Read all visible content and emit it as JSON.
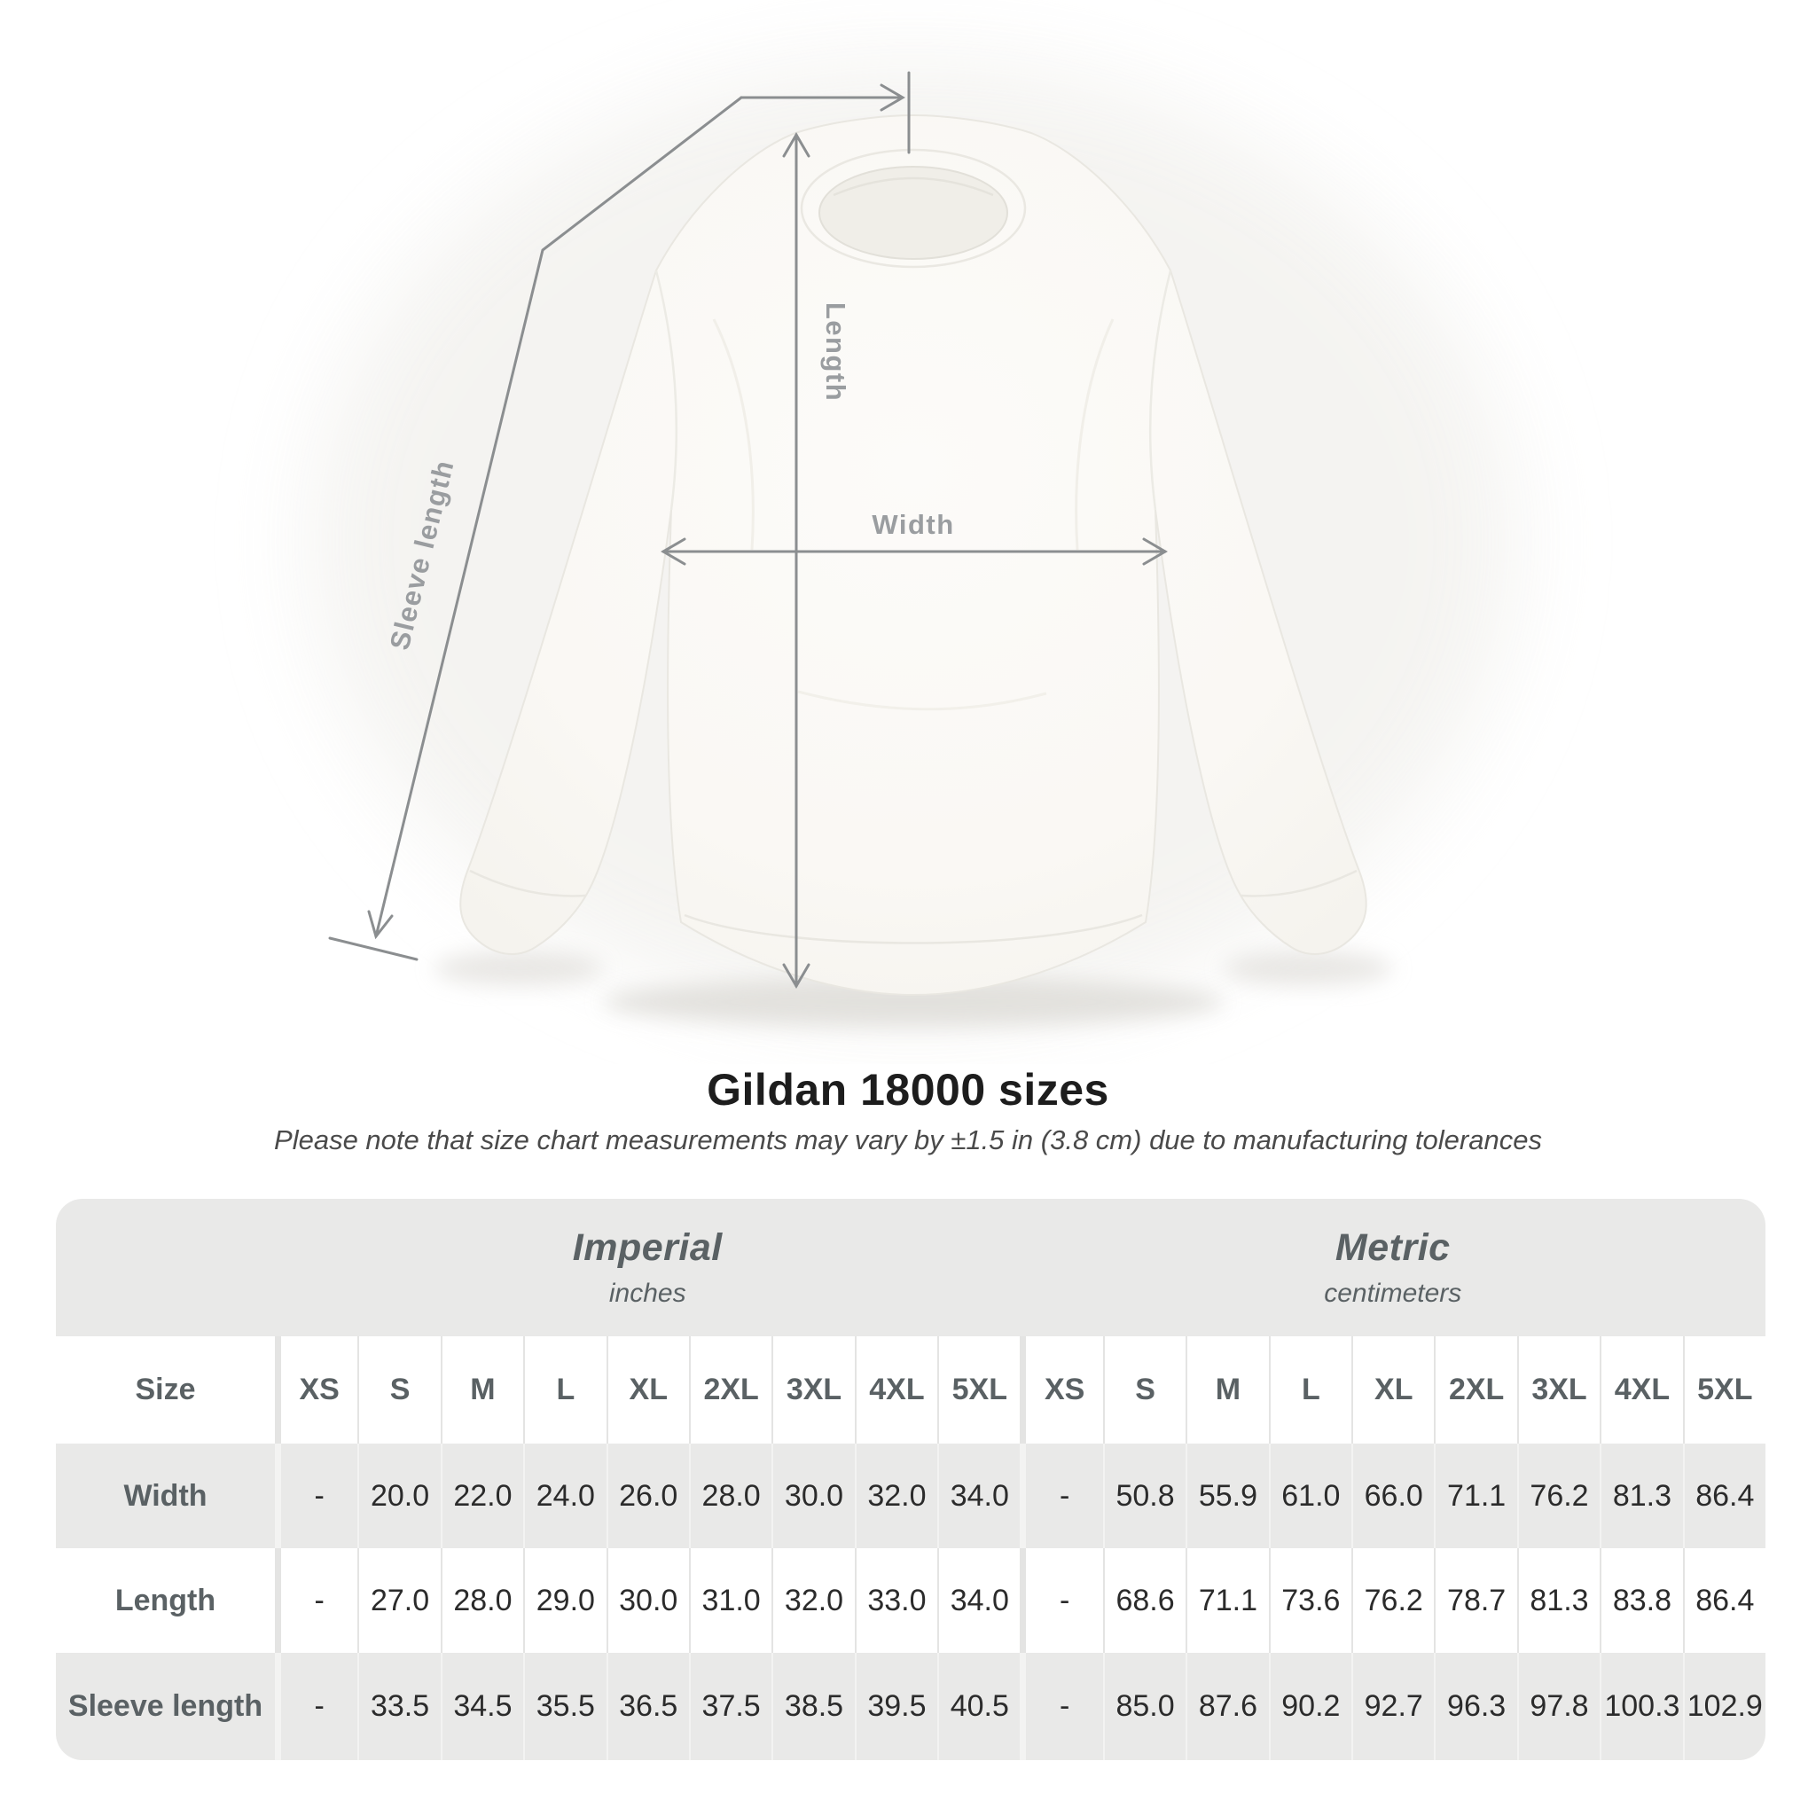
{
  "figure": {
    "length_label": "Length",
    "width_label": "Width",
    "sleeve_label": "Sleeve length"
  },
  "heading": {
    "title": "Gildan 18000 sizes",
    "subtitle": "Please note that size chart measurements may vary by ±1.5 in (3.8 cm) due to manufacturing tolerances"
  },
  "size_table": {
    "size_col_header": "Size",
    "groups": [
      {
        "label": "Imperial",
        "unit": "inches"
      },
      {
        "label": "Metric",
        "unit": "centimeters"
      }
    ],
    "sizes": [
      "XS",
      "S",
      "M",
      "L",
      "XL",
      "2XL",
      "3XL",
      "4XL",
      "5XL"
    ],
    "rows": [
      {
        "label": "Width",
        "imperial": [
          "-",
          "20.0",
          "22.0",
          "24.0",
          "26.0",
          "28.0",
          "30.0",
          "32.0",
          "34.0"
        ],
        "metric": [
          "-",
          "50.8",
          "55.9",
          "61.0",
          "66.0",
          "71.1",
          "76.2",
          "81.3",
          "86.4"
        ]
      },
      {
        "label": "Length",
        "imperial": [
          "-",
          "27.0",
          "28.0",
          "29.0",
          "30.0",
          "31.0",
          "32.0",
          "33.0",
          "34.0"
        ],
        "metric": [
          "-",
          "68.6",
          "71.1",
          "73.6",
          "76.2",
          "78.7",
          "81.3",
          "83.8",
          "86.4"
        ]
      },
      {
        "label": "Sleeve length",
        "imperial": [
          "-",
          "33.5",
          "34.5",
          "35.5",
          "36.5",
          "37.5",
          "38.5",
          "39.5",
          "40.5"
        ],
        "metric": [
          "-",
          "85.0",
          "87.6",
          "90.2",
          "92.7",
          "96.3",
          "97.8",
          "100.3",
          "102.9"
        ]
      }
    ]
  },
  "colors": {
    "band_gray": "#e9e9e8",
    "measure_line": "#8b8e90",
    "measure_label": "#9a9da0",
    "header_text": "#5a6164",
    "value_text": "#2b2b2b"
  },
  "chart_data": {
    "type": "table",
    "title": "Gildan 18000 sizes",
    "sizes": [
      "XS",
      "S",
      "M",
      "L",
      "XL",
      "2XL",
      "3XL",
      "4XL",
      "5XL"
    ],
    "imperial_inches": {
      "Width": [
        null,
        20.0,
        22.0,
        24.0,
        26.0,
        28.0,
        30.0,
        32.0,
        34.0
      ],
      "Length": [
        null,
        27.0,
        28.0,
        29.0,
        30.0,
        31.0,
        32.0,
        33.0,
        34.0
      ],
      "Sleeve length": [
        null,
        33.5,
        34.5,
        35.5,
        36.5,
        37.5,
        38.5,
        39.5,
        40.5
      ]
    },
    "metric_centimeters": {
      "Width": [
        null,
        50.8,
        55.9,
        61.0,
        66.0,
        71.1,
        76.2,
        81.3,
        86.4
      ],
      "Length": [
        null,
        68.6,
        71.1,
        73.6,
        76.2,
        78.7,
        81.3,
        83.8,
        86.4
      ],
      "Sleeve length": [
        null,
        85.0,
        87.6,
        90.2,
        92.7,
        96.3,
        97.8,
        100.3,
        102.9
      ]
    }
  }
}
